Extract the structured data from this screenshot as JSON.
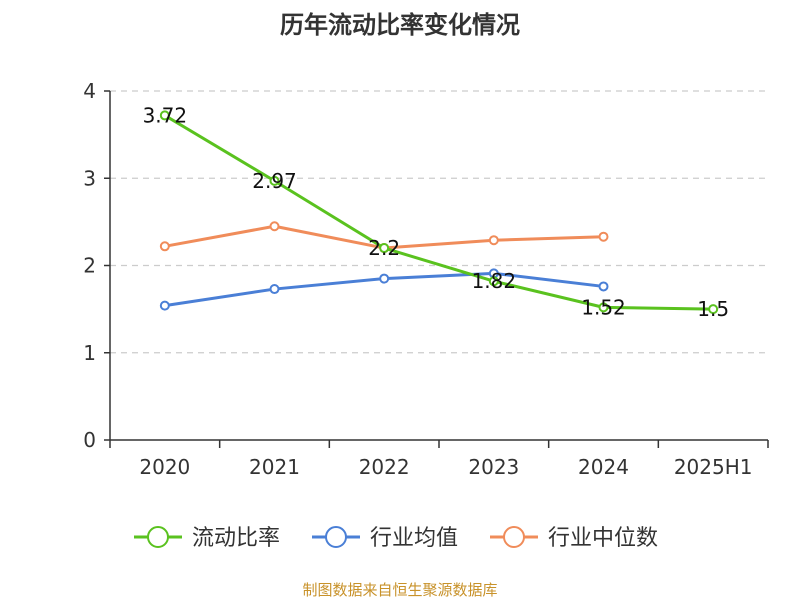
{
  "chart_data": {
    "type": "line",
    "title": "历年流动比率变化情况",
    "categories": [
      "2020",
      "2021",
      "2022",
      "2023",
      "2024",
      "2025H1"
    ],
    "ylim": [
      0,
      4
    ],
    "yticks": [
      "0",
      "1",
      "2",
      "3",
      "4"
    ],
    "grid": true,
    "legend_position": "bottom",
    "series": [
      {
        "name": "流动比率",
        "color": "#5ac21f",
        "values": [
          3.72,
          2.97,
          2.2,
          1.82,
          1.52,
          1.5
        ],
        "labels": [
          "3.72",
          "2.97",
          "2.2",
          "1.82",
          "1.52",
          "1.5"
        ]
      },
      {
        "name": "行业均值",
        "color": "#4a7fd6",
        "values": [
          1.54,
          1.73,
          1.85,
          1.91,
          1.76,
          null
        ]
      },
      {
        "name": "行业中位数",
        "color": "#f08c5a",
        "values": [
          2.22,
          2.45,
          2.2,
          2.29,
          2.33,
          null
        ]
      }
    ]
  },
  "source": "制图数据来自恒生聚源数据库"
}
